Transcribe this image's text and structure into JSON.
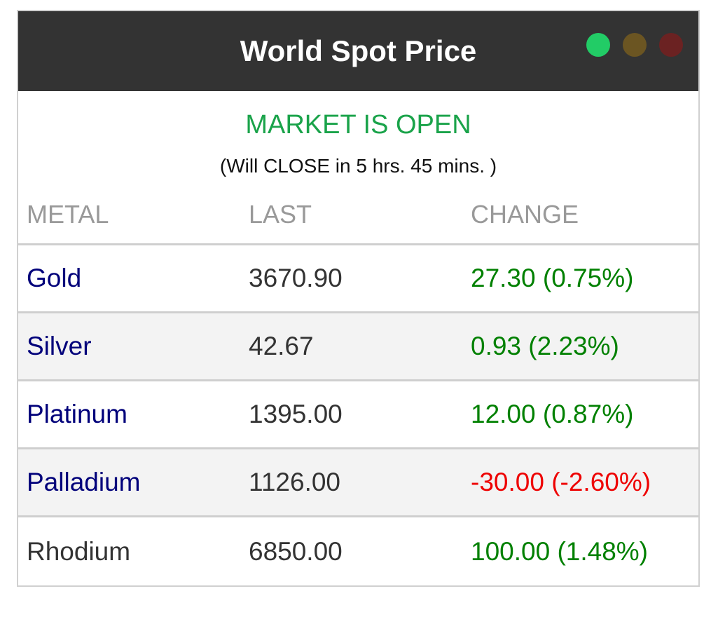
{
  "header": {
    "title": "World Spot Price",
    "dots": [
      {
        "name": "green-dot-icon",
        "color": "#22cc66"
      },
      {
        "name": "amber-dot-icon",
        "color": "#6b5522"
      },
      {
        "name": "red-dot-icon",
        "color": "#6b2222"
      }
    ]
  },
  "status": {
    "main": "MARKET IS OPEN",
    "main_color": "#1aa34a",
    "sub": "(Will CLOSE in 5 hrs. 45 mins. )"
  },
  "table": {
    "headers": [
      "METAL",
      "LAST",
      "CHANGE"
    ],
    "rows": [
      {
        "metal": "Gold",
        "last": "3670.90",
        "change": "27.30 (0.75%)",
        "change_color": "#008000",
        "linked": true
      },
      {
        "metal": "Silver",
        "last": "42.67",
        "change": "0.93 (2.23%)",
        "change_color": "#008000",
        "linked": true
      },
      {
        "metal": "Platinum",
        "last": "1395.00",
        "change": "12.00 (0.87%)",
        "change_color": "#008000",
        "linked": true
      },
      {
        "metal": "Palladium",
        "last": "1126.00",
        "change": "-30.00 (-2.60%)",
        "change_color": "#ee0000",
        "linked": true
      },
      {
        "metal": "Rhodium",
        "last": "6850.00",
        "change": "100.00 (1.48%)",
        "change_color": "#008000",
        "linked": false
      }
    ]
  }
}
